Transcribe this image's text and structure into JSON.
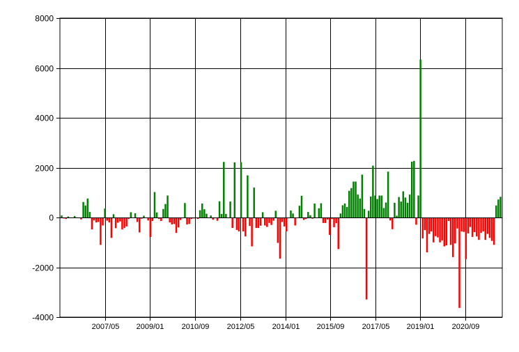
{
  "chart_data": {
    "type": "bar",
    "ylim": [
      -4000,
      8000
    ],
    "y_ticks": [
      "8000",
      "6000",
      "4000",
      "2000",
      "0",
      "-2000",
      "-4000"
    ],
    "x_ticks": [
      "2007/05",
      "2009/01",
      "2010/09",
      "2012/05",
      "2014/01",
      "2015/09",
      "2017/05",
      "2019/01",
      "2020/09"
    ],
    "grid": true,
    "positive_color": "#008000",
    "negative_color": "#ff0000",
    "values": [
      80,
      -40,
      -60,
      40,
      -30,
      -20,
      60,
      0,
      -30,
      -80,
      620,
      480,
      760,
      220,
      -480,
      -120,
      -200,
      -180,
      -1100,
      -320,
      360,
      -130,
      -200,
      -820,
      130,
      -430,
      -210,
      -160,
      -480,
      -420,
      -360,
      -60,
      210,
      -10,
      170,
      -180,
      -600,
      -50,
      70,
      -20,
      -120,
      -780,
      -140,
      1020,
      200,
      -60,
      -140,
      340,
      540,
      880,
      -200,
      -280,
      -260,
      -620,
      -400,
      -100,
      -30,
      580,
      -280,
      -260,
      -60,
      -40,
      -20,
      -60,
      290,
      560,
      330,
      150,
      -30,
      80,
      -90,
      -30,
      -130,
      650,
      140,
      2230,
      140,
      -30,
      640,
      -420,
      2210,
      -500,
      -560,
      2220,
      -560,
      -760,
      1690,
      -340,
      -1160,
      1200,
      -420,
      -420,
      -330,
      210,
      -320,
      -380,
      -220,
      -300,
      -130,
      270,
      -1020,
      -1650,
      -180,
      -360,
      -560,
      0,
      280,
      160,
      -320,
      0,
      470,
      870,
      -100,
      -60,
      220,
      90,
      -50,
      560,
      0,
      370,
      570,
      -220,
      -220,
      -80,
      -700,
      -60,
      -390,
      -230,
      -1270,
      160,
      490,
      560,
      420,
      1070,
      1180,
      1440,
      1440,
      920,
      760,
      1720,
      340,
      -3290,
      270,
      840,
      2080,
      880,
      740,
      880,
      880,
      380,
      600,
      1840,
      -120,
      -470,
      590,
      70,
      820,
      640,
      1050,
      800,
      590,
      920,
      2240,
      2270,
      -290,
      880,
      6340,
      -840,
      -510,
      -1400,
      -660,
      -560,
      -1000,
      -750,
      -800,
      -1000,
      -920,
      -1160,
      -1120,
      -140,
      -1100,
      -1590,
      -1040,
      -440,
      -3630,
      -560,
      -580,
      -1670,
      -640,
      -380,
      -780,
      -590,
      -760,
      -900,
      -620,
      -560,
      -900,
      -660,
      -820,
      -940,
      -1100,
      480,
      720,
      830
    ]
  }
}
